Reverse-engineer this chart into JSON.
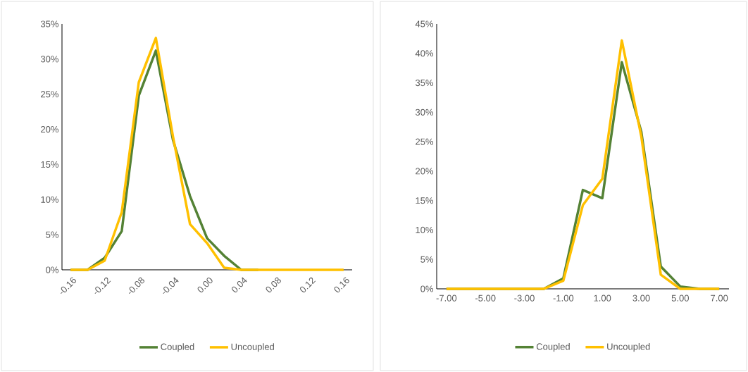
{
  "chart_data": [
    {
      "type": "line",
      "categories": [
        "-0.16",
        null,
        "-0.12",
        null,
        "-0.08",
        null,
        "-0.04",
        null,
        "0.00",
        null,
        "0.04",
        null,
        "0.08",
        null,
        "0.12",
        null,
        "0.16"
      ],
      "series": [
        {
          "name": "Coupled",
          "color": "#548235",
          "values": [
            0,
            0,
            1.7,
            5.5,
            24.8,
            31.2,
            18.5,
            10.5,
            4.5,
            2.0,
            0,
            0,
            null,
            null,
            null,
            null,
            null
          ]
        },
        {
          "name": "Uncoupled",
          "color": "#ffc000",
          "values": [
            0,
            0,
            1.3,
            8.2,
            26.7,
            33.0,
            19.0,
            6.5,
            3.8,
            0.3,
            0,
            0,
            0,
            0,
            0,
            0,
            0
          ]
        }
      ],
      "ylim": [
        0,
        35
      ],
      "yticks": [
        {
          "value": 0,
          "label": "0%"
        },
        {
          "value": 5,
          "label": "5%"
        },
        {
          "value": 10,
          "label": "10%"
        },
        {
          "value": 15,
          "label": "15%"
        },
        {
          "value": 20,
          "label": "20%"
        },
        {
          "value": 25,
          "label": "25%"
        },
        {
          "value": 30,
          "label": "30%"
        },
        {
          "value": 35,
          "label": "35%"
        }
      ],
      "legend": "bottom"
    },
    {
      "type": "line",
      "categories": [
        "-7.00",
        null,
        "-5.00",
        null,
        "-3.00",
        null,
        "-1.00",
        null,
        "1.00",
        null,
        "3.00",
        null,
        "5.00",
        null,
        "7.00"
      ],
      "series": [
        {
          "name": "Coupled",
          "color": "#548235",
          "values": [
            0,
            0,
            0,
            0,
            0,
            0,
            1.8,
            16.8,
            15.4,
            38.5,
            26.7,
            3.8,
            0.4,
            0,
            0
          ]
        },
        {
          "name": "Uncoupled",
          "color": "#ffc000",
          "values": [
            0,
            0,
            0,
            0,
            0,
            0,
            1.4,
            14.2,
            18.7,
            42.2,
            25.9,
            2.4,
            0,
            0,
            0
          ]
        }
      ],
      "ylim": [
        0,
        45
      ],
      "yticks": [
        {
          "value": 0,
          "label": "0%"
        },
        {
          "value": 5,
          "label": "5%"
        },
        {
          "value": 10,
          "label": "10%"
        },
        {
          "value": 15,
          "label": "15%"
        },
        {
          "value": 20,
          "label": "20%"
        },
        {
          "value": 25,
          "label": "25%"
        },
        {
          "value": 30,
          "label": "30%"
        },
        {
          "value": 35,
          "label": "35%"
        },
        {
          "value": 40,
          "label": "40%"
        },
        {
          "value": 45,
          "label": "45%"
        }
      ],
      "legend": "bottom"
    }
  ]
}
